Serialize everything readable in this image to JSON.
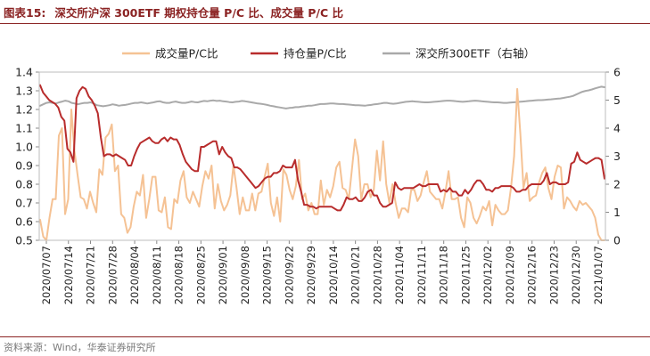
{
  "header": {
    "figure_label": "图表15:",
    "title": "深交所沪深 300ETF 期权持仓量 P/C 比、成交量 P/C 比"
  },
  "footer": {
    "source": "资料来源：Wind，华泰证券研究所"
  },
  "colors": {
    "volume": "#f5c294",
    "oi": "#b82c2c",
    "etf": "#a9a9a9"
  },
  "chart_data": {
    "type": "line",
    "title": "深交所沪深 300ETF 期权持仓量 P/C 比、成交量 P/C 比",
    "xlabel": "",
    "ylabel": "",
    "ylim": [
      0.5,
      1.4
    ],
    "y2lim": [
      0,
      6
    ],
    "yticks": [
      "1.4",
      "1.3",
      "1.2",
      "1.1",
      "1.0",
      "0.9",
      "0.8",
      "0.7",
      "0.6",
      "0.5"
    ],
    "y2ticks": [
      "6",
      "5",
      "4",
      "3",
      "2",
      "1",
      "0"
    ],
    "x_tick_labels": [
      "2020/07/07",
      "2020/07/14",
      "2020/07/21",
      "2020/07/28",
      "2020/08/04",
      "2020/08/11",
      "2020/08/18",
      "2020/08/25",
      "2020/09/01",
      "2020/09/08",
      "2020/09/15",
      "2020/09/22",
      "2020/09/29",
      "2020/10/14",
      "2020/10/21",
      "2020/10/28",
      "2020/11/04",
      "2020/11/11",
      "2020/11/18",
      "2020/11/25",
      "2020/12/02",
      "2020/12/09",
      "2020/12/16",
      "2020/12/23",
      "2020/12/30",
      "2021/01/07"
    ],
    "legend": [
      "成交量P/C比",
      "持仓量P/C比",
      "深交所300ETF（右轴）"
    ],
    "legend_position": "top",
    "series": [
      {
        "name": "成交量P/C比",
        "axis": "left",
        "values": [
          0.61,
          0.52,
          0.5,
          0.62,
          0.72,
          0.72,
          1.06,
          1.1,
          0.64,
          0.72,
          1.2,
          0.98,
          0.85,
          0.73,
          0.72,
          0.67,
          0.76,
          0.7,
          0.65,
          0.88,
          0.85,
          1.05,
          1.07,
          1.12,
          0.87,
          0.9,
          0.64,
          0.62,
          0.54,
          0.57,
          0.68,
          0.76,
          0.74,
          0.85,
          0.62,
          0.72,
          0.84,
          0.84,
          0.66,
          0.65,
          0.73,
          0.57,
          0.56,
          0.72,
          0.7,
          0.82,
          0.87,
          0.73,
          0.7,
          0.76,
          0.72,
          0.68,
          0.79,
          0.87,
          0.83,
          0.9,
          0.67,
          0.8,
          0.71,
          0.66,
          0.69,
          0.74,
          0.9,
          0.78,
          0.64,
          0.73,
          0.66,
          0.66,
          0.75,
          0.66,
          0.75,
          0.76,
          0.84,
          0.91,
          0.7,
          0.63,
          0.73,
          0.6,
          0.88,
          0.85,
          0.77,
          0.72,
          0.79,
          0.93,
          0.72,
          0.75,
          0.66,
          0.7,
          0.64,
          0.64,
          0.82,
          0.69,
          0.77,
          0.73,
          0.79,
          0.89,
          0.92,
          0.78,
          0.77,
          0.72,
          0.88,
          1.04,
          0.95,
          0.72,
          0.8,
          0.8,
          0.73,
          0.77,
          0.98,
          0.82,
          1.03,
          0.8,
          0.7,
          0.8,
          0.7,
          0.62,
          0.67,
          0.67,
          0.65,
          0.77,
          0.77,
          0.71,
          0.74,
          0.81,
          0.87,
          0.76,
          0.74,
          0.72,
          0.72,
          0.67,
          0.76,
          0.87,
          0.72,
          0.72,
          0.73,
          0.62,
          0.57,
          0.73,
          0.7,
          0.62,
          0.59,
          0.63,
          0.68,
          0.66,
          0.71,
          0.58,
          0.69,
          0.66,
          0.64,
          0.64,
          0.66,
          0.78,
          0.95,
          1.31,
          1.07,
          0.78,
          0.86,
          0.71,
          0.73,
          0.74,
          0.81,
          0.86,
          0.89,
          0.78,
          0.72,
          0.84,
          0.9,
          0.89,
          0.67,
          0.73,
          0.71,
          0.68,
          0.66,
          0.71,
          0.69,
          0.7,
          0.68,
          0.66,
          0.62,
          0.53,
          0.5,
          0.5
        ]
      },
      {
        "name": "持仓量P/C比",
        "axis": "left",
        "values": [
          1.33,
          1.29,
          1.27,
          1.25,
          1.24,
          1.23,
          1.21,
          1.16,
          1.14,
          0.99,
          0.97,
          0.92,
          1.26,
          1.3,
          1.32,
          1.31,
          1.27,
          1.25,
          1.22,
          1.18,
          1.05,
          0.95,
          0.96,
          0.96,
          0.95,
          0.96,
          0.95,
          0.94,
          0.93,
          0.9,
          0.9,
          0.95,
          0.99,
          1.02,
          1.03,
          1.04,
          1.05,
          1.03,
          1.02,
          1.02,
          1.04,
          1.05,
          1.03,
          1.05,
          1.04,
          1.04,
          1.01,
          0.96,
          0.92,
          0.9,
          0.88,
          0.87,
          0.87,
          1.0,
          1.0,
          1.01,
          1.02,
          1.03,
          1.03,
          0.96,
          1.0,
          0.97,
          0.95,
          0.94,
          0.89,
          0.89,
          0.88,
          0.86,
          0.84,
          0.82,
          0.8,
          0.78,
          0.79,
          0.81,
          0.83,
          0.84,
          0.84,
          0.86,
          0.86,
          0.87,
          0.9,
          0.89,
          0.89,
          0.89,
          0.93,
          0.82,
          0.76,
          0.69,
          0.69,
          0.68,
          0.68,
          0.67,
          0.68,
          0.68,
          0.68,
          0.68,
          0.68,
          0.67,
          0.66,
          0.66,
          0.69,
          0.73,
          0.72,
          0.72,
          0.73,
          0.71,
          0.71,
          0.73,
          0.76,
          0.77,
          0.74,
          0.74,
          0.7,
          0.68,
          0.68,
          0.69,
          0.7,
          0.81,
          0.78,
          0.77,
          0.78,
          0.78,
          0.78,
          0.78,
          0.79,
          0.8,
          0.79,
          0.79,
          0.8,
          0.8,
          0.8,
          0.8,
          0.76,
          0.77,
          0.76,
          0.78,
          0.76,
          0.76,
          0.74,
          0.74,
          0.77,
          0.75,
          0.77,
          0.8,
          0.82,
          0.82,
          0.8,
          0.77,
          0.77,
          0.76,
          0.78,
          0.78,
          0.79,
          0.79,
          0.79,
          0.79,
          0.78,
          0.76,
          0.76,
          0.77,
          0.77,
          0.79,
          0.8,
          0.8,
          0.8,
          0.8,
          0.82,
          0.86,
          0.8,
          0.81,
          0.81,
          0.8,
          0.8,
          0.8,
          0.81,
          0.91,
          0.92,
          0.97,
          0.93,
          0.92,
          0.91,
          0.92,
          0.93,
          0.94,
          0.94,
          0.93,
          0.83
        ]
      },
      {
        "name": "深交所300ETF（右轴）",
        "axis": "right",
        "values": [
          4.8,
          4.85,
          4.9,
          4.92,
          4.9,
          4.88,
          4.92,
          4.95,
          4.98,
          4.96,
          4.9,
          4.88,
          4.85,
          4.88,
          4.9,
          4.9,
          4.92,
          4.88,
          4.82,
          4.8,
          4.78,
          4.8,
          4.82,
          4.85,
          4.83,
          4.8,
          4.82,
          4.83,
          4.85,
          4.88,
          4.9,
          4.9,
          4.92,
          4.9,
          4.88,
          4.9,
          4.92,
          4.95,
          4.96,
          4.92,
          4.9,
          4.9,
          4.93,
          4.95,
          4.92,
          4.9,
          4.9,
          4.92,
          4.95,
          4.93,
          4.92,
          4.95,
          4.97,
          4.96,
          4.98,
          4.99,
          4.97,
          4.98,
          4.96,
          4.95,
          4.93,
          4.92,
          4.94,
          4.95,
          4.97,
          4.96,
          4.94,
          4.92,
          4.9,
          4.88,
          4.87,
          4.85,
          4.83,
          4.8,
          4.78,
          4.76,
          4.74,
          4.72,
          4.7,
          4.72,
          4.73,
          4.75,
          4.75,
          4.77,
          4.78,
          4.8,
          4.8,
          4.82,
          4.84,
          4.86,
          4.86,
          4.87,
          4.88,
          4.88,
          4.87,
          4.86,
          4.86,
          4.85,
          4.84,
          4.83,
          4.82,
          4.82,
          4.81,
          4.8,
          4.82,
          4.83,
          4.85,
          4.86,
          4.88,
          4.9,
          4.9,
          4.88,
          4.87,
          4.88,
          4.9,
          4.92,
          4.94,
          4.95,
          4.96,
          4.95,
          4.94,
          4.93,
          4.92,
          4.92,
          4.93,
          4.94,
          4.95,
          4.96,
          4.97,
          4.98,
          4.98,
          4.97,
          4.96,
          4.95,
          4.94,
          4.95,
          4.96,
          4.97,
          4.98,
          4.97,
          4.96,
          4.95,
          4.94,
          4.93,
          4.92,
          4.92,
          4.91,
          4.9,
          4.9,
          4.91,
          4.92,
          4.93,
          4.94,
          4.95,
          4.96,
          4.97,
          4.98,
          4.99,
          5.0,
          5.0,
          5.01,
          5.02,
          5.03,
          5.04,
          5.05,
          5.06,
          5.08,
          5.1,
          5.12,
          5.15,
          5.2,
          5.25,
          5.3,
          5.33,
          5.35,
          5.38,
          5.42,
          5.45,
          5.48,
          5.46
        ]
      }
    ]
  }
}
